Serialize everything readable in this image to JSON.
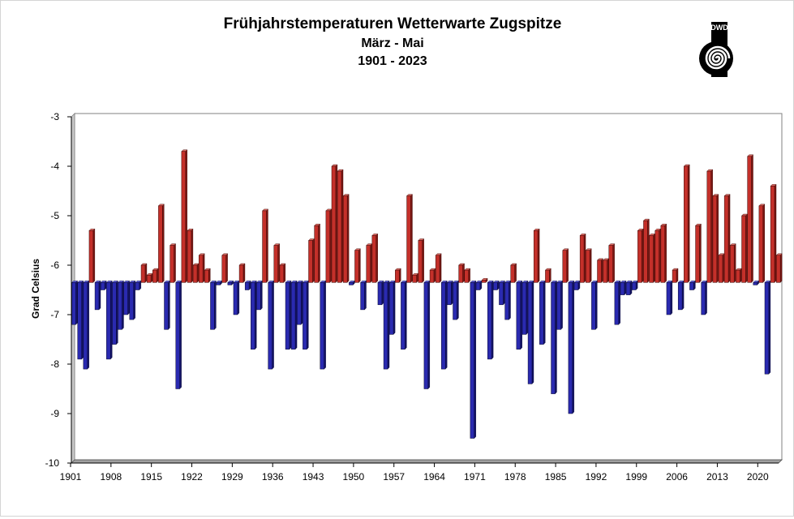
{
  "chart_data": {
    "type": "bar",
    "title": "Frühjahrstemperaturen Wetterwarte Zugspitze",
    "subtitle": "März - Mai",
    "period": "1901 - 2023",
    "xlabel": "",
    "ylabel": "Grad Celsius",
    "ylim": [
      -10,
      -3
    ],
    "yticks": [
      -3,
      -4,
      -5,
      -6,
      -7,
      -8,
      -9,
      -10
    ],
    "xticks": [
      1901,
      1908,
      1915,
      1922,
      1929,
      1936,
      1943,
      1950,
      1957,
      1964,
      1971,
      1978,
      1985,
      1992,
      1999,
      2006,
      2013,
      2020
    ],
    "baseline": -6.35,
    "grid": false,
    "categories": [
      1901,
      1902,
      1903,
      1904,
      1905,
      1906,
      1907,
      1908,
      1909,
      1910,
      1911,
      1912,
      1913,
      1914,
      1915,
      1916,
      1917,
      1918,
      1919,
      1920,
      1921,
      1922,
      1923,
      1924,
      1925,
      1926,
      1927,
      1928,
      1929,
      1930,
      1931,
      1932,
      1933,
      1934,
      1935,
      1936,
      1937,
      1938,
      1939,
      1940,
      1941,
      1942,
      1943,
      1944,
      1945,
      1946,
      1947,
      1948,
      1949,
      1950,
      1951,
      1952,
      1953,
      1954,
      1955,
      1956,
      1957,
      1958,
      1959,
      1960,
      1961,
      1962,
      1963,
      1964,
      1965,
      1966,
      1967,
      1968,
      1969,
      1970,
      1971,
      1972,
      1973,
      1974,
      1975,
      1976,
      1977,
      1978,
      1979,
      1980,
      1981,
      1982,
      1983,
      1984,
      1985,
      1986,
      1987,
      1988,
      1989,
      1990,
      1991,
      1992,
      1993,
      1994,
      1995,
      1996,
      1997,
      1998,
      1999,
      2000,
      2001,
      2002,
      2003,
      2004,
      2005,
      2006,
      2007,
      2008,
      2009,
      2010,
      2011,
      2012,
      2013,
      2014,
      2015,
      2016,
      2017,
      2018,
      2019,
      2020,
      2021,
      2022,
      2023
    ],
    "values": [
      -7.2,
      -7.9,
      -8.1,
      -5.3,
      -6.9,
      -6.5,
      -7.9,
      -7.6,
      -7.3,
      -7.0,
      -7.1,
      -6.5,
      -6.0,
      -6.2,
      -6.1,
      -4.8,
      -7.3,
      -5.6,
      -8.5,
      -3.7,
      -5.3,
      -6.0,
      -5.8,
      -6.1,
      -7.3,
      -6.4,
      -5.8,
      -6.4,
      -7.0,
      -6.0,
      -6.5,
      -7.7,
      -6.9,
      -4.9,
      -8.1,
      -5.6,
      -6.0,
      -7.7,
      -7.7,
      -7.2,
      -7.7,
      -5.5,
      -5.2,
      -8.1,
      -4.9,
      -4.0,
      -4.1,
      -4.6,
      -6.4,
      -5.7,
      -6.9,
      -5.6,
      -5.4,
      -6.8,
      -8.1,
      -7.4,
      -6.1,
      -7.7,
      -4.6,
      -6.2,
      -5.5,
      -8.5,
      -6.1,
      -5.8,
      -8.1,
      -6.8,
      -7.1,
      -6.0,
      -6.1,
      -9.5,
      -6.5,
      -6.3,
      -7.9,
      -6.5,
      -6.8,
      -7.1,
      -6.0,
      -7.7,
      -7.4,
      -8.4,
      -5.3,
      -7.6,
      -6.1,
      -8.6,
      -7.3,
      -5.7,
      -9.0,
      -6.5,
      -5.4,
      -5.7,
      -7.3,
      -5.9,
      -5.9,
      -5.6,
      -7.2,
      -6.6,
      -6.6,
      -6.5,
      -5.3,
      -5.1,
      -5.4,
      -5.3,
      -5.2,
      -7.0,
      -6.1,
      -6.9,
      -4.0,
      -6.5,
      -5.2,
      -7.0,
      -4.1,
      -4.6,
      -5.8,
      -4.6,
      -5.6,
      -6.1,
      -5.0,
      -3.8,
      -6.4,
      -4.8,
      -8.2,
      -4.4,
      -5.8
    ],
    "colors": {
      "above": {
        "front": "#c4302a",
        "side": "#7a1712",
        "top": "#de6a62",
        "edge": "#3a0806"
      },
      "below": {
        "front": "#2a2ab0",
        "side": "#131368",
        "top": "#5c5cd6",
        "edge": "#06062e"
      }
    }
  },
  "logo": {
    "text": "DWD"
  }
}
